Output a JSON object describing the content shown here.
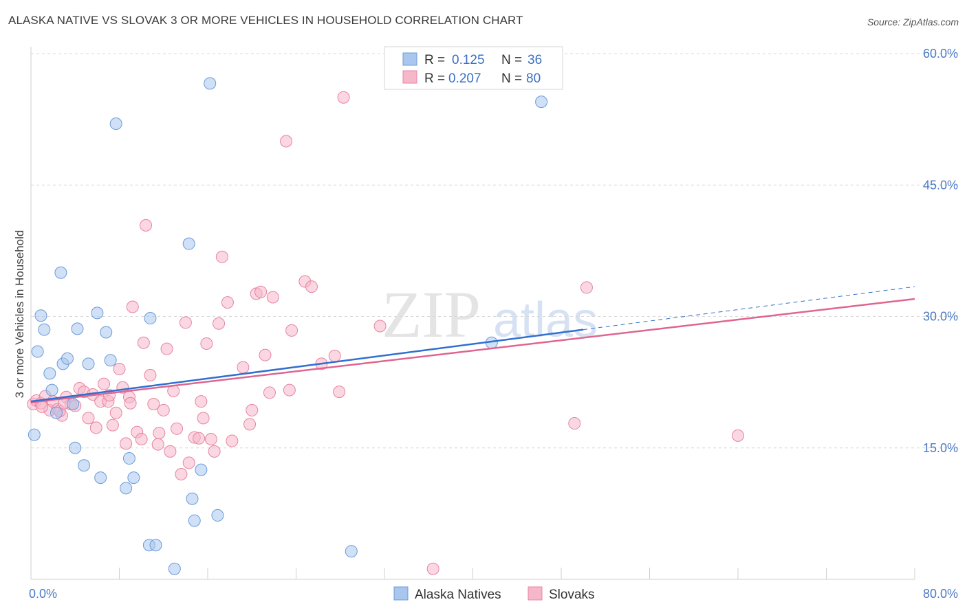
{
  "title": "ALASKA NATIVE VS SLOVAK 3 OR MORE VEHICLES IN HOUSEHOLD CORRELATION CHART",
  "source": "Source: ZipAtlas.com",
  "watermark": {
    "zip": "ZIP",
    "atlas": "atlas"
  },
  "colors": {
    "blue_fill": "#a9c6ee",
    "blue_stroke": "#6b9bd8",
    "blue_line": "#2f6fd0",
    "pink_fill": "#f6b7cb",
    "pink_stroke": "#e8849f",
    "pink_line": "#e0648f",
    "grid": "#d8d8d8",
    "tick_text": "#4a7ac7"
  },
  "legend_top": {
    "rows": [
      {
        "r_label": "R = ",
        "r_value": "0.125",
        "n_label": "N = ",
        "n_value": "36",
        "series": "Alaska Natives"
      },
      {
        "r_label": "R = ",
        "r_value": "0.207",
        "n_label": "N = ",
        "n_value": "80",
        "series": "Slovaks"
      }
    ]
  },
  "chart_data": {
    "type": "scatter",
    "title": "ALASKA NATIVE VS SLOVAK 3 OR MORE VEHICLES IN HOUSEHOLD CORRELATION CHART",
    "xlabel": "",
    "ylabel": "3 or more Vehicles in Household",
    "xlim": [
      0,
      80
    ],
    "ylim": [
      0,
      60
    ],
    "x_tick_labels": [
      {
        "value": 0,
        "label": "0.0%"
      },
      {
        "value": 80,
        "label": "80.0%"
      }
    ],
    "x_minor_ticks": [
      8,
      16,
      24,
      32,
      40,
      48,
      56,
      64,
      72,
      80
    ],
    "y_ticks": [
      {
        "value": 15,
        "label": "15.0%"
      },
      {
        "value": 30,
        "label": "30.0%"
      },
      {
        "value": 45,
        "label": "45.0%"
      },
      {
        "value": 60,
        "label": "60.0%"
      }
    ],
    "grid": true,
    "legend_position": "bottom-center",
    "series": [
      {
        "name": "Alaska Natives",
        "color": "blue",
        "r": 0.125,
        "n": 36,
        "trend": {
          "x0": 0,
          "y0": 20.3,
          "x1": 50,
          "y1": 28.5,
          "dash_to_x": 80,
          "dash_to_y": 33.4
        },
        "points": [
          [
            0.3,
            16.5
          ],
          [
            0.6,
            26
          ],
          [
            0.9,
            30.1
          ],
          [
            1.2,
            28.5
          ],
          [
            1.7,
            23.5
          ],
          [
            1.9,
            21.6
          ],
          [
            2.3,
            19
          ],
          [
            2.7,
            35
          ],
          [
            2.9,
            24.6
          ],
          [
            3.3,
            25.2
          ],
          [
            4.2,
            28.6
          ],
          [
            5.2,
            24.6
          ],
          [
            6.0,
            30.4
          ],
          [
            6.8,
            28.2
          ],
          [
            7.2,
            25
          ],
          [
            7.7,
            52
          ],
          [
            4.0,
            15
          ],
          [
            4.8,
            13
          ],
          [
            6.3,
            11.6
          ],
          [
            8.9,
            13.8
          ],
          [
            8.6,
            10.4
          ],
          [
            9.3,
            11.6
          ],
          [
            10.8,
            29.8
          ],
          [
            10.7,
            3.9
          ],
          [
            11.3,
            3.9
          ],
          [
            13.0,
            1.2
          ],
          [
            14.3,
            38.3
          ],
          [
            14.6,
            9.2
          ],
          [
            14.8,
            6.7
          ],
          [
            15.4,
            12.5
          ],
          [
            16.2,
            56.6
          ],
          [
            16.9,
            7.3
          ],
          [
            29.0,
            3.2
          ],
          [
            41.7,
            27
          ],
          [
            46.2,
            54.5
          ],
          [
            3.8,
            20
          ]
        ]
      },
      {
        "name": "Slovaks",
        "color": "pink",
        "r": 0.207,
        "n": 80,
        "trend": {
          "x0": 0,
          "y0": 20.2,
          "x1": 80,
          "y1": 32
        },
        "points": [
          [
            0.2,
            20
          ],
          [
            0.5,
            20.4
          ],
          [
            0.9,
            20.1
          ],
          [
            1.3,
            20.9
          ],
          [
            1.7,
            19.3
          ],
          [
            2.0,
            20.3
          ],
          [
            2.4,
            19.4
          ],
          [
            2.8,
            18.7
          ],
          [
            3.2,
            20.8
          ],
          [
            3.6,
            20
          ],
          [
            4.0,
            19.8
          ],
          [
            4.4,
            21.8
          ],
          [
            4.8,
            21.4
          ],
          [
            5.2,
            18.4
          ],
          [
            5.6,
            21.1
          ],
          [
            5.9,
            17.3
          ],
          [
            6.3,
            20.3
          ],
          [
            6.6,
            22.3
          ],
          [
            7.0,
            20.3
          ],
          [
            7.4,
            17.6
          ],
          [
            7.7,
            19
          ],
          [
            8.0,
            24
          ],
          [
            8.3,
            21.9
          ],
          [
            8.6,
            15.5
          ],
          [
            8.9,
            20.8
          ],
          [
            9.0,
            20.1
          ],
          [
            9.2,
            31.1
          ],
          [
            9.6,
            16.8
          ],
          [
            10.0,
            16
          ],
          [
            10.2,
            27
          ],
          [
            10.4,
            40.4
          ],
          [
            10.8,
            23.3
          ],
          [
            11.1,
            20
          ],
          [
            11.5,
            15.4
          ],
          [
            11.6,
            16.7
          ],
          [
            12.0,
            19.3
          ],
          [
            12.3,
            26.3
          ],
          [
            12.6,
            14.6
          ],
          [
            12.9,
            21.5
          ],
          [
            13.2,
            17.2
          ],
          [
            13.6,
            12
          ],
          [
            14.0,
            29.3
          ],
          [
            14.3,
            13.3
          ],
          [
            14.8,
            16.2
          ],
          [
            15.2,
            16.1
          ],
          [
            15.4,
            20.3
          ],
          [
            15.6,
            18.4
          ],
          [
            15.9,
            26.9
          ],
          [
            16.3,
            16
          ],
          [
            16.6,
            14.6
          ],
          [
            17.0,
            29.2
          ],
          [
            17.3,
            36.8
          ],
          [
            17.8,
            31.6
          ],
          [
            18.2,
            15.8
          ],
          [
            19.2,
            24.2
          ],
          [
            19.8,
            17.7
          ],
          [
            20.0,
            19.3
          ],
          [
            20.4,
            32.6
          ],
          [
            20.8,
            32.8
          ],
          [
            21.2,
            25.6
          ],
          [
            21.6,
            21.3
          ],
          [
            21.9,
            32.2
          ],
          [
            23.1,
            50
          ],
          [
            23.4,
            21.6
          ],
          [
            23.6,
            28.4
          ],
          [
            24.8,
            34
          ],
          [
            25.4,
            33.4
          ],
          [
            26.3,
            24.6
          ],
          [
            27.5,
            25.5
          ],
          [
            27.9,
            21.4
          ],
          [
            28.3,
            55
          ],
          [
            31.6,
            28.9
          ],
          [
            36.4,
            1.2
          ],
          [
            49.2,
            17.8
          ],
          [
            50.3,
            33.3
          ],
          [
            64.0,
            16.4
          ],
          [
            1.0,
            19.7
          ],
          [
            7.1,
            21.0
          ],
          [
            2.6,
            19.2
          ],
          [
            3.0,
            20.1
          ]
        ]
      }
    ]
  },
  "bottom_legend": [
    {
      "label": "Alaska Natives",
      "color": "blue"
    },
    {
      "label": "Slovaks",
      "color": "pink"
    }
  ]
}
